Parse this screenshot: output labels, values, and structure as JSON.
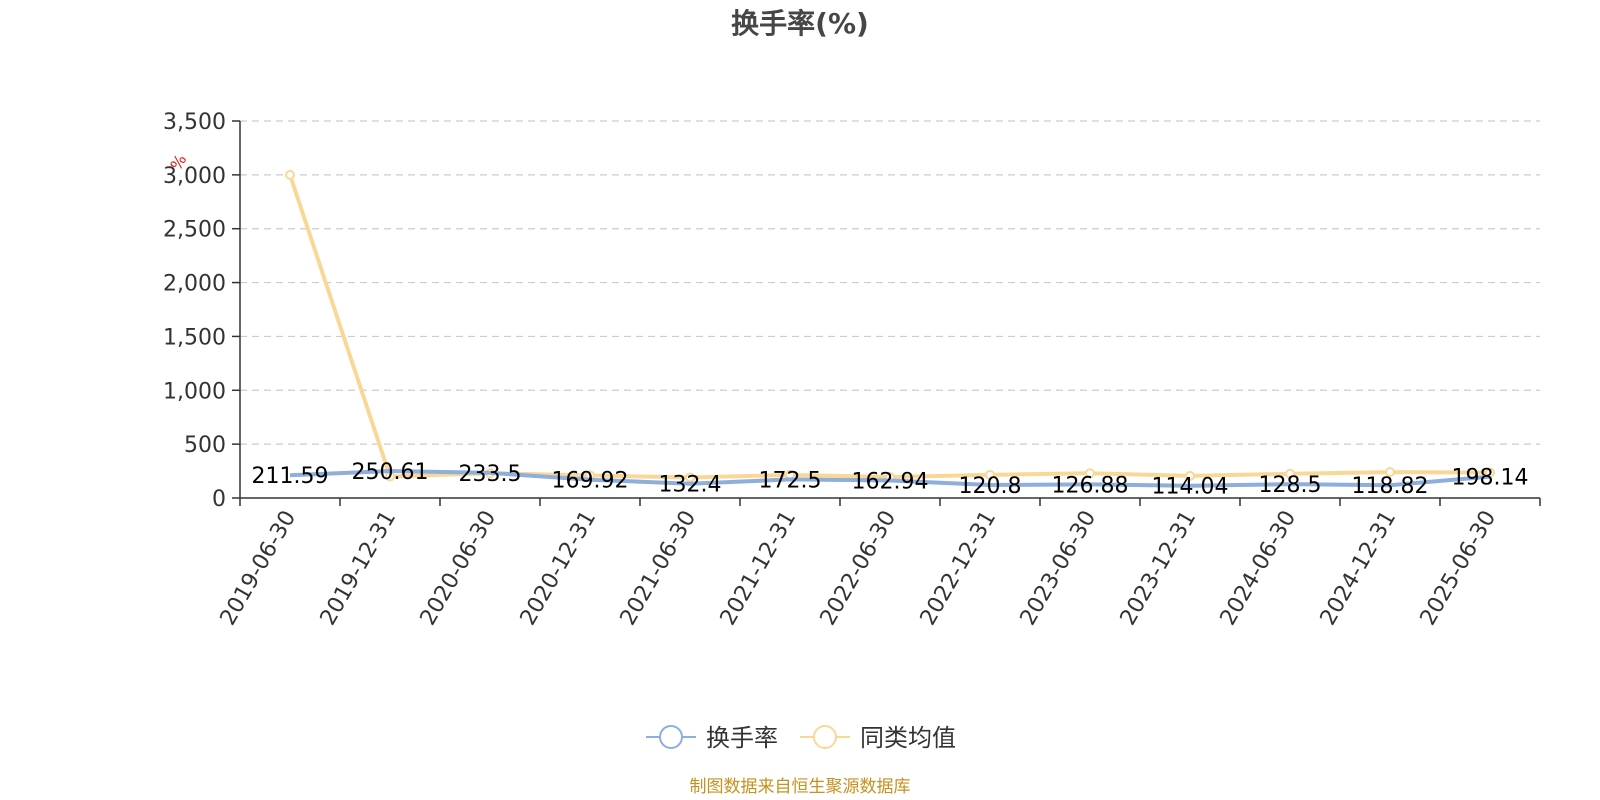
{
  "chart_data": {
    "type": "line",
    "title": "换手率(%)",
    "y_unit": "%",
    "categories": [
      "2019-06-30",
      "2019-12-31",
      "2020-06-30",
      "2020-12-31",
      "2021-06-30",
      "2021-12-31",
      "2022-06-30",
      "2022-12-31",
      "2023-06-30",
      "2023-12-31",
      "2024-06-30",
      "2024-12-31",
      "2025-06-30"
    ],
    "ylim": [
      0,
      3500
    ],
    "yticks": [
      0,
      500,
      1000,
      1500,
      2000,
      2500,
      3000,
      3500
    ],
    "ytick_labels": [
      "0",
      "500",
      "1,000",
      "1,500",
      "2,000",
      "2,500",
      "3,000",
      "3,500"
    ],
    "grid": true,
    "legend_position": "bottom-center",
    "series": [
      {
        "name": "换手率",
        "color": "#8eaedb",
        "values": [
          211.59,
          250.61,
          233.5,
          169.92,
          132.4,
          172.5,
          162.94,
          120.8,
          126.88,
          114.04,
          128.5,
          118.82,
          198.14
        ],
        "labels": [
          "211.59",
          "250.61",
          "233.5",
          "169.92",
          "132.4",
          "172.5",
          "162.94",
          "120.8",
          "126.88",
          "114.04",
          "128.5",
          "118.82",
          "198.14"
        ]
      },
      {
        "name": "同类均值",
        "color": "#f9d897",
        "values": [
          3000,
          200,
          230,
          210,
          190,
          215,
          195,
          215,
          230,
          205,
          225,
          240,
          235
        ]
      }
    ],
    "source": "制图数据来自恒生聚源数据库"
  }
}
